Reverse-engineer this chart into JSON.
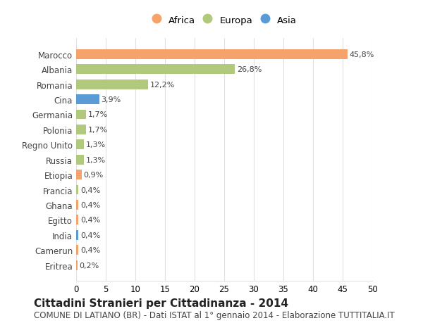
{
  "categories": [
    "Eritrea",
    "Camerun",
    "India",
    "Egitto",
    "Ghana",
    "Francia",
    "Etiopia",
    "Russia",
    "Regno Unito",
    "Polonia",
    "Germania",
    "Cina",
    "Romania",
    "Albania",
    "Marocco"
  ],
  "values": [
    0.2,
    0.4,
    0.4,
    0.4,
    0.4,
    0.4,
    0.9,
    1.3,
    1.3,
    1.7,
    1.7,
    3.9,
    12.2,
    26.8,
    45.8
  ],
  "colors": [
    "#f5a26b",
    "#f5a26b",
    "#5b9bd5",
    "#f5a26b",
    "#f5a26b",
    "#b0c97c",
    "#f5a26b",
    "#b0c97c",
    "#b0c97c",
    "#b0c97c",
    "#b0c97c",
    "#5b9bd5",
    "#b0c97c",
    "#b0c97c",
    "#f5a26b"
  ],
  "labels": [
    "0,2%",
    "0,4%",
    "0,4%",
    "0,4%",
    "0,4%",
    "0,4%",
    "0,9%",
    "1,3%",
    "1,3%",
    "1,7%",
    "1,7%",
    "3,9%",
    "12,2%",
    "26,8%",
    "45,8%"
  ],
  "legend_items": [
    {
      "label": "Africa",
      "color": "#f5a26b"
    },
    {
      "label": "Europa",
      "color": "#b0c97c"
    },
    {
      "label": "Asia",
      "color": "#5b9bd5"
    }
  ],
  "xlim": [
    0,
    50
  ],
  "xticks": [
    0,
    5,
    10,
    15,
    20,
    25,
    30,
    35,
    40,
    45,
    50
  ],
  "title": "Cittadini Stranieri per Cittadinanza - 2014",
  "subtitle": "COMUNE DI LATIANO (BR) - Dati ISTAT al 1° gennaio 2014 - Elaborazione TUTTITALIA.IT",
  "background_color": "#ffffff",
  "grid_color": "#e0e0e0",
  "bar_height": 0.65,
  "title_fontsize": 11,
  "subtitle_fontsize": 8.5,
  "label_fontsize": 8,
  "tick_fontsize": 8.5
}
